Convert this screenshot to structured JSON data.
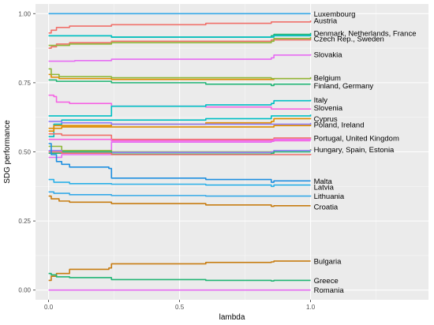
{
  "chart_data": {
    "type": "line",
    "title": "",
    "xlabel": "lambda",
    "ylabel": "SDG performance",
    "xlim": [
      -0.05,
      1.45
    ],
    "ylim": [
      -0.035,
      1.035
    ],
    "x_ticks": [
      0,
      0.5,
      1
    ],
    "x_tick_labels": [
      "0.0",
      "0.5",
      "1.0"
    ],
    "y_ticks": [
      0,
      0.25,
      0.5,
      0.75,
      1
    ],
    "y_tick_labels": [
      "0.00",
      "0.25",
      "0.50",
      "0.75",
      "1.00"
    ],
    "grid": true,
    "legend": "none",
    "series": [
      {
        "color": "#35A9E8",
        "points": [
          [
            0,
            1.0
          ],
          [
            1,
            1.0
          ]
        ]
      },
      {
        "color": "#F0706A",
        "points": [
          [
            0,
            0.93
          ],
          [
            0.01,
            0.94
          ],
          [
            0.03,
            0.95
          ],
          [
            0.08,
            0.955
          ],
          [
            0.24,
            0.96
          ],
          [
            0.6,
            0.965
          ],
          [
            0.85,
            0.97
          ],
          [
            1,
            0.975
          ]
        ]
      },
      {
        "color": "#F0706A",
        "points": [
          [
            0,
            0.875
          ],
          [
            0.01,
            0.88
          ],
          [
            0.03,
            0.89
          ],
          [
            0.08,
            0.895
          ],
          [
            0.24,
            0.9
          ],
          [
            0.85,
            0.905
          ],
          [
            1,
            0.91
          ]
        ]
      },
      {
        "color": "#21B574",
        "points": [
          [
            0,
            0.92
          ],
          [
            0.08,
            0.92
          ],
          [
            0.24,
            0.915
          ],
          [
            0.85,
            0.92
          ],
          [
            0.86,
            0.925
          ],
          [
            1,
            0.93
          ]
        ]
      },
      {
        "color": "#00BFC4",
        "points": [
          [
            0,
            0.92
          ],
          [
            0.24,
            0.915
          ],
          [
            0.85,
            0.915
          ],
          [
            0.86,
            0.92
          ],
          [
            1,
            0.925
          ]
        ]
      },
      {
        "color": "#8EB83A",
        "points": [
          [
            0,
            0.885
          ],
          [
            0.08,
            0.89
          ],
          [
            0.24,
            0.895
          ],
          [
            0.85,
            0.9
          ],
          [
            0.86,
            0.91
          ],
          [
            1,
            0.915
          ]
        ]
      },
      {
        "color": "#E76BF3",
        "points": [
          [
            0,
            0.828
          ],
          [
            0.1,
            0.83
          ],
          [
            0.24,
            0.835
          ],
          [
            0.85,
            0.84
          ],
          [
            0.86,
            0.85
          ],
          [
            1,
            0.853
          ]
        ]
      },
      {
        "color": "#DE8C00",
        "points": [
          [
            0,
            0.78
          ],
          [
            0.01,
            0.77
          ],
          [
            0.04,
            0.765
          ],
          [
            0.24,
            0.762
          ],
          [
            0.85,
            0.762
          ],
          [
            0.86,
            0.765
          ],
          [
            1,
            0.768
          ]
        ]
      },
      {
        "color": "#8EB83A",
        "points": [
          [
            0,
            0.8
          ],
          [
            0.01,
            0.78
          ],
          [
            0.04,
            0.772
          ],
          [
            0.24,
            0.768
          ],
          [
            0.85,
            0.765
          ],
          [
            1,
            0.77
          ]
        ]
      },
      {
        "color": "#21B574",
        "points": [
          [
            0,
            0.76
          ],
          [
            0.03,
            0.755
          ],
          [
            0.24,
            0.75
          ],
          [
            0.6,
            0.745
          ],
          [
            0.85,
            0.74
          ],
          [
            0.86,
            0.745
          ],
          [
            1,
            0.745
          ]
        ]
      },
      {
        "color": "#F564E3",
        "points": [
          [
            0,
            0.705
          ],
          [
            0.02,
            0.7
          ],
          [
            0.03,
            0.68
          ],
          [
            0.08,
            0.675
          ],
          [
            0.24,
            0.665
          ],
          [
            0.6,
            0.662
          ],
          [
            0.85,
            0.655
          ],
          [
            1,
            0.657
          ]
        ]
      },
      {
        "color": "#00BFC4",
        "points": [
          [
            0,
            0.63
          ],
          [
            0.05,
            0.63
          ],
          [
            0.24,
            0.665
          ],
          [
            0.6,
            0.67
          ],
          [
            0.85,
            0.675
          ],
          [
            0.86,
            0.685
          ],
          [
            1,
            0.688
          ]
        ]
      },
      {
        "color": "#00BFC4",
        "points": [
          [
            0,
            0.555
          ],
          [
            0.02,
            0.6
          ],
          [
            0.05,
            0.615
          ],
          [
            0.24,
            0.615
          ],
          [
            0.6,
            0.62
          ],
          [
            0.85,
            0.63
          ],
          [
            1,
            0.635
          ]
        ]
      },
      {
        "color": "#DE8C00",
        "points": [
          [
            0,
            0.575
          ],
          [
            0.02,
            0.595
          ],
          [
            0.24,
            0.6
          ],
          [
            0.6,
            0.605
          ],
          [
            0.85,
            0.61
          ],
          [
            0.86,
            0.62
          ],
          [
            1,
            0.622
          ]
        ]
      },
      {
        "color": "#8F7CF8",
        "points": [
          [
            0,
            0.61
          ],
          [
            0.05,
            0.605
          ],
          [
            0.24,
            0.6
          ],
          [
            0.6,
            0.6
          ],
          [
            0.86,
            0.6
          ],
          [
            1,
            0.605
          ]
        ]
      },
      {
        "color": "#DE8C00",
        "points": [
          [
            0,
            0.585
          ],
          [
            0.05,
            0.59
          ],
          [
            0.24,
            0.59
          ],
          [
            0.85,
            0.59
          ],
          [
            0.86,
            0.595
          ],
          [
            1,
            0.598
          ]
        ]
      },
      {
        "color": "#F0706A",
        "points": [
          [
            0,
            0.565
          ],
          [
            0.05,
            0.56
          ],
          [
            0.24,
            0.545
          ],
          [
            0.85,
            0.545
          ],
          [
            0.86,
            0.55
          ],
          [
            1,
            0.552
          ]
        ]
      },
      {
        "color": "#E76BF3",
        "points": [
          [
            0,
            0.48
          ],
          [
            0.05,
            0.49
          ],
          [
            0.24,
            0.535
          ],
          [
            0.85,
            0.538
          ],
          [
            0.86,
            0.545
          ],
          [
            1,
            0.547
          ]
        ]
      },
      {
        "color": "#F564E3",
        "points": [
          [
            0,
            0.545
          ],
          [
            0.05,
            0.545
          ],
          [
            0.24,
            0.54
          ],
          [
            0.85,
            0.54
          ],
          [
            1,
            0.54
          ]
        ]
      },
      {
        "color": "#8EB83A",
        "points": [
          [
            0,
            0.52
          ],
          [
            0.05,
            0.505
          ],
          [
            0.24,
            0.5
          ],
          [
            0.85,
            0.5
          ],
          [
            0.86,
            0.505
          ],
          [
            1,
            0.51
          ]
        ]
      },
      {
        "color": "#8F7CF8",
        "points": [
          [
            0,
            0.505
          ],
          [
            0.05,
            0.5
          ],
          [
            0.24,
            0.498
          ],
          [
            0.85,
            0.5
          ],
          [
            0.86,
            0.505
          ],
          [
            1,
            0.508
          ]
        ]
      },
      {
        "color": "#21B574",
        "points": [
          [
            0,
            0.495
          ],
          [
            0.05,
            0.5
          ],
          [
            0.24,
            0.492
          ],
          [
            0.85,
            0.495
          ],
          [
            0.86,
            0.5
          ],
          [
            1,
            0.5
          ]
        ]
      },
      {
        "color": "#F0706A",
        "points": [
          [
            0,
            0.5
          ],
          [
            0.05,
            0.495
          ],
          [
            0.24,
            0.49
          ],
          [
            0.85,
            0.49
          ],
          [
            1,
            0.493
          ]
        ]
      },
      {
        "color": "#1F8FE0",
        "points": [
          [
            0,
            0.53
          ],
          [
            0.01,
            0.49
          ],
          [
            0.03,
            0.465
          ],
          [
            0.05,
            0.455
          ],
          [
            0.08,
            0.445
          ],
          [
            0.23,
            0.44
          ],
          [
            0.24,
            0.405
          ],
          [
            0.6,
            0.4
          ],
          [
            0.85,
            0.39
          ],
          [
            0.86,
            0.395
          ],
          [
            1,
            0.395
          ]
        ]
      },
      {
        "color": "#2AB0E8",
        "points": [
          [
            0,
            0.4
          ],
          [
            0.02,
            0.39
          ],
          [
            0.08,
            0.385
          ],
          [
            0.24,
            0.383
          ],
          [
            0.6,
            0.38
          ],
          [
            0.85,
            0.375
          ],
          [
            0.86,
            0.38
          ],
          [
            1,
            0.38
          ]
        ]
      },
      {
        "color": "#35A9E8",
        "points": [
          [
            0,
            0.355
          ],
          [
            0.02,
            0.35
          ],
          [
            0.08,
            0.345
          ],
          [
            0.24,
            0.342
          ],
          [
            0.6,
            0.34
          ],
          [
            0.85,
            0.34
          ],
          [
            1,
            0.342
          ]
        ]
      },
      {
        "color": "#C77C11",
        "points": [
          [
            0,
            0.34
          ],
          [
            0.01,
            0.33
          ],
          [
            0.04,
            0.322
          ],
          [
            0.08,
            0.318
          ],
          [
            0.24,
            0.313
          ],
          [
            0.6,
            0.308
          ],
          [
            0.85,
            0.303
          ],
          [
            0.86,
            0.305
          ],
          [
            1,
            0.305
          ]
        ]
      },
      {
        "color": "#C77C11",
        "points": [
          [
            0,
            0.035
          ],
          [
            0.01,
            0.05
          ],
          [
            0.03,
            0.06
          ],
          [
            0.08,
            0.075
          ],
          [
            0.23,
            0.08
          ],
          [
            0.24,
            0.095
          ],
          [
            0.6,
            0.1
          ],
          [
            0.85,
            0.102
          ],
          [
            0.86,
            0.105
          ],
          [
            1,
            0.105
          ]
        ]
      },
      {
        "color": "#21B574",
        "points": [
          [
            0,
            0.06
          ],
          [
            0.01,
            0.055
          ],
          [
            0.03,
            0.048
          ],
          [
            0.08,
            0.045
          ],
          [
            0.24,
            0.038
          ],
          [
            0.6,
            0.035
          ],
          [
            0.85,
            0.033
          ],
          [
            0.86,
            0.035
          ],
          [
            1,
            0.035
          ]
        ]
      },
      {
        "color": "#E76BF3",
        "points": [
          [
            0,
            0.0
          ],
          [
            1,
            0.0
          ]
        ]
      }
    ],
    "labels": [
      {
        "text": "Luxembourg",
        "y": 1.0
      },
      {
        "text": "Austria",
        "y": 0.975
      },
      {
        "text": "Denmark, Netherlands, France",
        "y": 0.93
      },
      {
        "text": "Czech Rep., Sweden",
        "y": 0.91
      },
      {
        "text": "Slovakia",
        "y": 0.853
      },
      {
        "text": "Belgium",
        "y": 0.768
      },
      {
        "text": "Finland, Germany",
        "y": 0.74
      },
      {
        "text": "Italy",
        "y": 0.688
      },
      {
        "text": "Slovenia",
        "y": 0.66
      },
      {
        "text": "Cyprus",
        "y": 0.62
      },
      {
        "text": "Poland, Ireland",
        "y": 0.598
      },
      {
        "text": "Portugal, United Kingdom",
        "y": 0.55
      },
      {
        "text": "Hungary, Spain, Estonia",
        "y": 0.508
      },
      {
        "text": "Malta",
        "y": 0.395
      },
      {
        "text": "Latvia",
        "y": 0.373
      },
      {
        "text": "Lithuania",
        "y": 0.34
      },
      {
        "text": "Croatia",
        "y": 0.302
      },
      {
        "text": "Bulgaria",
        "y": 0.105
      },
      {
        "text": "Greece",
        "y": 0.035
      },
      {
        "text": "Romania",
        "y": 0.0
      }
    ]
  }
}
